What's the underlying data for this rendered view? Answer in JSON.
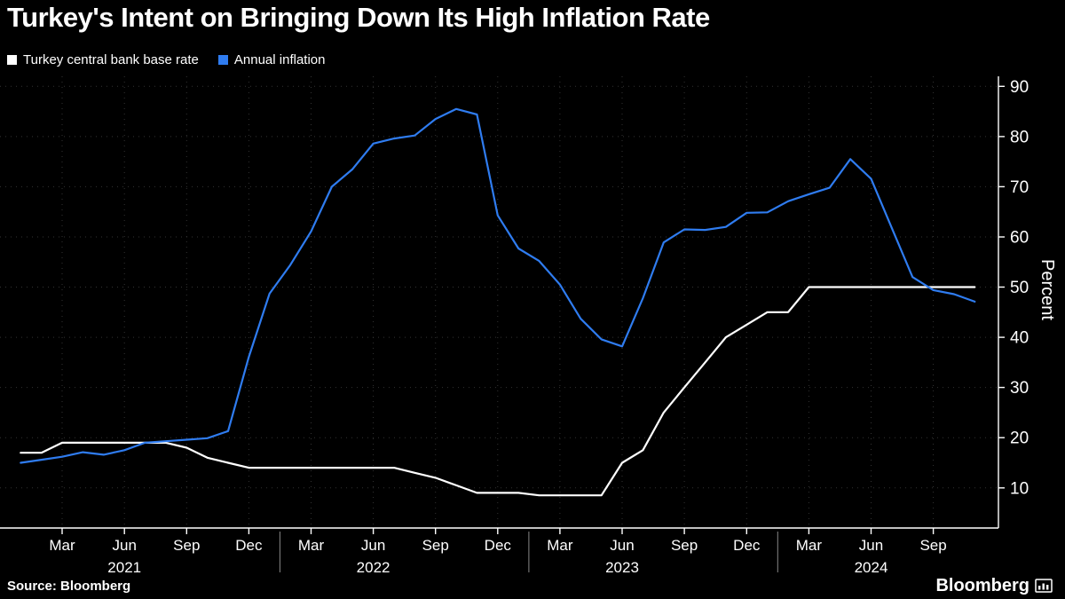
{
  "title": "Turkey's Intent on Bringing Down Its High Inflation Rate",
  "footer": {
    "source": "Source: Bloomberg",
    "brand": "Bloomberg"
  },
  "colors": {
    "background": "#000000",
    "axis": "#ffffff",
    "grid": "#333333",
    "base_rate_line": "#ffffff",
    "inflation_line": "#2f7cf0"
  },
  "chart_data": {
    "type": "line",
    "title": "Turkey's Intent on Bringing Down Its High Inflation Rate",
    "xlabel": "",
    "ylabel": "Percent",
    "ylim": [
      2,
      92
    ],
    "y_ticks": [
      10,
      20,
      30,
      40,
      50,
      60,
      70,
      80,
      90
    ],
    "x_unit": "months, index 0 = Jan 2021",
    "x_ticks": [
      {
        "label": "Mar",
        "month": 2
      },
      {
        "label": "Jun",
        "month": 5
      },
      {
        "label": "Sep",
        "month": 8
      },
      {
        "label": "Dec",
        "month": 11
      },
      {
        "label": "Mar",
        "month": 14
      },
      {
        "label": "Jun",
        "month": 17
      },
      {
        "label": "Sep",
        "month": 20
      },
      {
        "label": "Dec",
        "month": 23
      },
      {
        "label": "Mar",
        "month": 26
      },
      {
        "label": "Jun",
        "month": 29
      },
      {
        "label": "Sep",
        "month": 32
      },
      {
        "label": "Dec",
        "month": 35
      },
      {
        "label": "Mar",
        "month": 38
      },
      {
        "label": "Jun",
        "month": 41
      },
      {
        "label": "Sep",
        "month": 44
      }
    ],
    "year_labels": [
      {
        "label": "2021",
        "month": 5
      },
      {
        "label": "2022",
        "month": 17
      },
      {
        "label": "2023",
        "month": 29
      },
      {
        "label": "2024",
        "month": 41
      }
    ],
    "year_dividers": [
      12.5,
      24.5,
      36.5
    ],
    "legend_position": "top-left",
    "grid": true,
    "series": [
      {
        "name": "Turkey central bank base rate",
        "color": "#ffffff",
        "values": [
          17,
          17,
          19,
          19,
          19,
          19,
          19,
          19,
          18,
          16,
          15,
          14,
          14,
          14,
          14,
          14,
          14,
          14,
          14,
          13,
          12,
          10.5,
          9,
          9,
          9,
          8.5,
          8.5,
          8.5,
          8.5,
          15,
          17.5,
          25,
          30,
          35,
          40,
          42.5,
          45,
          45,
          50,
          50,
          50,
          50,
          50,
          50,
          50,
          50,
          50
        ]
      },
      {
        "name": "Annual inflation",
        "color": "#2f7cf0",
        "values": [
          15.0,
          15.6,
          16.2,
          17.1,
          16.6,
          17.5,
          19.0,
          19.3,
          19.6,
          19.9,
          21.3,
          36.1,
          48.7,
          54.4,
          61.1,
          70.0,
          73.5,
          78.6,
          79.6,
          80.2,
          83.5,
          85.5,
          84.4,
          64.3,
          57.7,
          55.2,
          50.5,
          43.7,
          39.6,
          38.2,
          47.8,
          58.9,
          61.5,
          61.4,
          62.0,
          64.8,
          64.9,
          67.1,
          68.5,
          69.8,
          75.5,
          71.6,
          61.8,
          52.0,
          49.4,
          48.6,
          47.1
        ]
      }
    ]
  }
}
